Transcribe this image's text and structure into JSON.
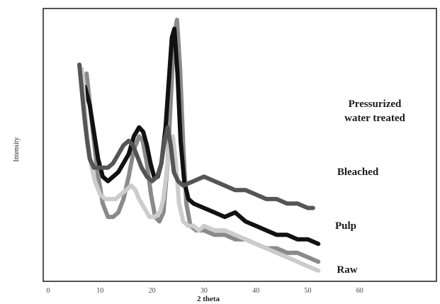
{
  "chart_data": {
    "type": "line",
    "xlabel": "2 theta",
    "ylabel": "Intensity",
    "xlim": [
      0,
      70
    ],
    "x_ticks": [
      0,
      10,
      20,
      30,
      40,
      50,
      60
    ],
    "grid": false,
    "legend": "direct labels at right end of each trace",
    "series": [
      {
        "name": "Pressurized water treated",
        "label_lines": [
          "Pressurized",
          "water treated"
        ],
        "color": "#8a8a8a",
        "points": [
          [
            7.4,
            100
          ],
          [
            8.5,
            88
          ],
          [
            9.5,
            78
          ],
          [
            10.5,
            71
          ],
          [
            11.5,
            68
          ],
          [
            12.5,
            68
          ],
          [
            13.5,
            69
          ],
          [
            14.5,
            72
          ],
          [
            15.5,
            77
          ],
          [
            16.5,
            83
          ],
          [
            17.5,
            86
          ],
          [
            18.2,
            85
          ],
          [
            19,
            80
          ],
          [
            19.8,
            73
          ],
          [
            20.6,
            68
          ],
          [
            21.4,
            67
          ],
          [
            22.2,
            69
          ],
          [
            23,
            80
          ],
          [
            23.6,
            94
          ],
          [
            24.2,
            108
          ],
          [
            24.8,
            112
          ],
          [
            25.4,
            101
          ],
          [
            26,
            84
          ],
          [
            26.6,
            71
          ],
          [
            27.4,
            66
          ],
          [
            28.5,
            65
          ],
          [
            30,
            65
          ],
          [
            32,
            64
          ],
          [
            34,
            64
          ],
          [
            36,
            63
          ],
          [
            38,
            63
          ],
          [
            40,
            62
          ],
          [
            42,
            61
          ],
          [
            44,
            61
          ],
          [
            46,
            60
          ],
          [
            48,
            60
          ],
          [
            50,
            59
          ],
          [
            52,
            58
          ]
        ]
      },
      {
        "name": "Bleached",
        "label_lines": [
          "Bleached"
        ],
        "color": "#111111",
        "points": [
          [
            7.1,
            97
          ],
          [
            8,
            93
          ],
          [
            8.8,
            87
          ],
          [
            9.6,
            81
          ],
          [
            10.5,
            77
          ],
          [
            11.5,
            76
          ],
          [
            12.5,
            77
          ],
          [
            13.5,
            78
          ],
          [
            14.5,
            80
          ],
          [
            15.5,
            82
          ],
          [
            16.5,
            86
          ],
          [
            17.5,
            88
          ],
          [
            18.3,
            87
          ],
          [
            19,
            84
          ],
          [
            19.7,
            80
          ],
          [
            20.4,
            77
          ],
          [
            21.1,
            77
          ],
          [
            21.8,
            80
          ],
          [
            22.6,
            88
          ],
          [
            23.2,
            98
          ],
          [
            23.8,
            108
          ],
          [
            24.3,
            110
          ],
          [
            24.9,
            100
          ],
          [
            25.5,
            85
          ],
          [
            26.2,
            76
          ],
          [
            27,
            72
          ],
          [
            28,
            71
          ],
          [
            30,
            70
          ],
          [
            32,
            69
          ],
          [
            34,
            68
          ],
          [
            36,
            69
          ],
          [
            37,
            68
          ],
          [
            38,
            67
          ],
          [
            40,
            66
          ],
          [
            42,
            65
          ],
          [
            44,
            64
          ],
          [
            46,
            64
          ],
          [
            48,
            63
          ],
          [
            50,
            63
          ],
          [
            52,
            62
          ]
        ]
      },
      {
        "name": "Pulp",
        "label_lines": [
          "Pulp"
        ],
        "color": "#cccccc",
        "points": [
          [
            6.5,
            101
          ],
          [
            7,
            93
          ],
          [
            7.5,
            86
          ],
          [
            8.2,
            80
          ],
          [
            9,
            76
          ],
          [
            10,
            73
          ],
          [
            11,
            72
          ],
          [
            12,
            72
          ],
          [
            13,
            72
          ],
          [
            14,
            73
          ],
          [
            15,
            74
          ],
          [
            16,
            75
          ],
          [
            16.8,
            74
          ],
          [
            17.5,
            72
          ],
          [
            18.5,
            70
          ],
          [
            19.5,
            68
          ],
          [
            20.5,
            68
          ],
          [
            21.5,
            69
          ],
          [
            22.2,
            72
          ],
          [
            22.8,
            78
          ],
          [
            23.4,
            85
          ],
          [
            24,
            86
          ],
          [
            24.6,
            80
          ],
          [
            25.2,
            71
          ],
          [
            26,
            67
          ],
          [
            27,
            66
          ],
          [
            28,
            66
          ],
          [
            29,
            65
          ],
          [
            30,
            66
          ],
          [
            32,
            65
          ],
          [
            34,
            65
          ],
          [
            36,
            64
          ],
          [
            38,
            63
          ],
          [
            40,
            62
          ],
          [
            42,
            61
          ],
          [
            44,
            60
          ],
          [
            46,
            59
          ],
          [
            48,
            58
          ],
          [
            50,
            57
          ],
          [
            52,
            56
          ]
        ]
      },
      {
        "name": "Raw",
        "label_lines": [
          "Raw"
        ],
        "color": "#555555",
        "points": [
          [
            6,
            102
          ],
          [
            6.5,
            96
          ],
          [
            7,
            90
          ],
          [
            7.5,
            85
          ],
          [
            8,
            81
          ],
          [
            8.8,
            79
          ],
          [
            9.6,
            79
          ],
          [
            10.5,
            79
          ],
          [
            11.5,
            79
          ],
          [
            12.5,
            80
          ],
          [
            13.5,
            82
          ],
          [
            14.5,
            84
          ],
          [
            15.5,
            85
          ],
          [
            16.3,
            84
          ],
          [
            17,
            82
          ],
          [
            18,
            79
          ],
          [
            19,
            77
          ],
          [
            20,
            76
          ],
          [
            21,
            77
          ],
          [
            21.8,
            80
          ],
          [
            22.4,
            85
          ],
          [
            23,
            88
          ],
          [
            23.6,
            84
          ],
          [
            24.2,
            78
          ],
          [
            25,
            76
          ],
          [
            26,
            75
          ],
          [
            28,
            76
          ],
          [
            30,
            77
          ],
          [
            32,
            76
          ],
          [
            34,
            75
          ],
          [
            36,
            74
          ],
          [
            38,
            74
          ],
          [
            40,
            73
          ],
          [
            42,
            72
          ],
          [
            44,
            72
          ],
          [
            46,
            71
          ],
          [
            48,
            71
          ],
          [
            50,
            70
          ],
          [
            51,
            70
          ]
        ]
      }
    ]
  }
}
